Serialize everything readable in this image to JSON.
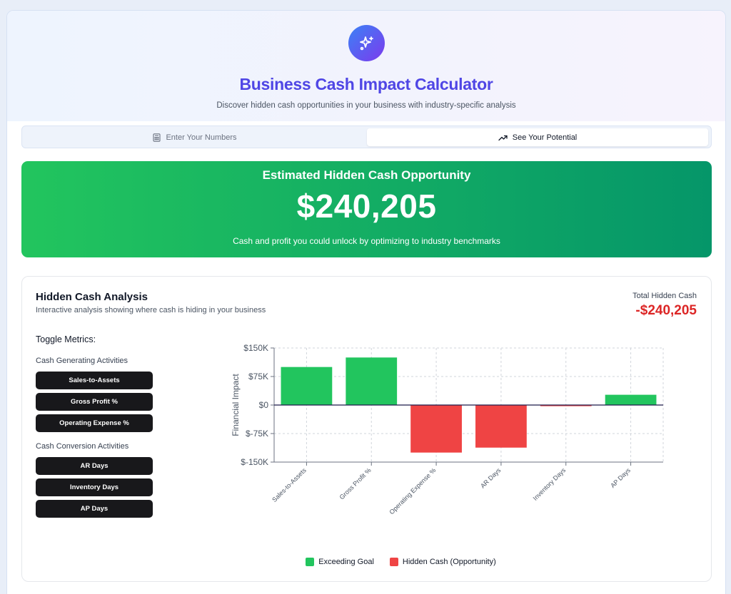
{
  "header": {
    "logo_icon": "sparkles-icon",
    "title": "Business Cash Impact Calculator",
    "subtitle": "Discover hidden cash opportunities in your business with industry-specific analysis"
  },
  "tabs": [
    {
      "label": "Enter Your Numbers",
      "icon": "calculator-icon",
      "active": false
    },
    {
      "label": "See Your Potential",
      "icon": "trending-up-icon",
      "active": true
    }
  ],
  "banner": {
    "title": "Estimated Hidden Cash Opportunity",
    "amount": "$240,205",
    "note": "Cash and profit you could unlock by optimizing to industry benchmarks"
  },
  "analysis": {
    "title": "Hidden Cash Analysis",
    "subtitle": "Interactive analysis showing where cash is hiding in your business",
    "total_label": "Total Hidden Cash",
    "total_value": "-$240,205"
  },
  "toggles": {
    "title": "Toggle Metrics:",
    "groups": [
      {
        "title": "Cash Generating Activities",
        "items": [
          "Sales-to-Assets",
          "Gross Profit %",
          "Operating Expense %"
        ]
      },
      {
        "title": "Cash Conversion Activities",
        "items": [
          "AR Days",
          "Inventory Days",
          "AP Days"
        ]
      }
    ]
  },
  "colors": {
    "positive": "#22c55e",
    "negative": "#ef4444",
    "accent": "#4f46e5",
    "total": "#dc2626"
  },
  "chart_data": {
    "type": "bar",
    "categories": [
      "Sales-to-Assets",
      "Gross Profit %",
      "Operating Expense %",
      "AR Days",
      "Inventory Days",
      "AP Days"
    ],
    "values": [
      100000,
      125000,
      -125000,
      -112000,
      -3000,
      27000
    ],
    "ylabel": "Financial Impact",
    "ylim": [
      -150000,
      150000
    ],
    "yticks": [
      150000,
      75000,
      0,
      -75000,
      -150000
    ],
    "ytick_labels": [
      "$150K",
      "$75K",
      "$0",
      "$-75K",
      "$-150K"
    ],
    "grid": true,
    "legend": [
      {
        "label": "Exceeding Goal",
        "color": "#22c55e"
      },
      {
        "label": "Hidden Cash (Opportunity)",
        "color": "#ef4444"
      }
    ],
    "legend_position": "bottom"
  }
}
